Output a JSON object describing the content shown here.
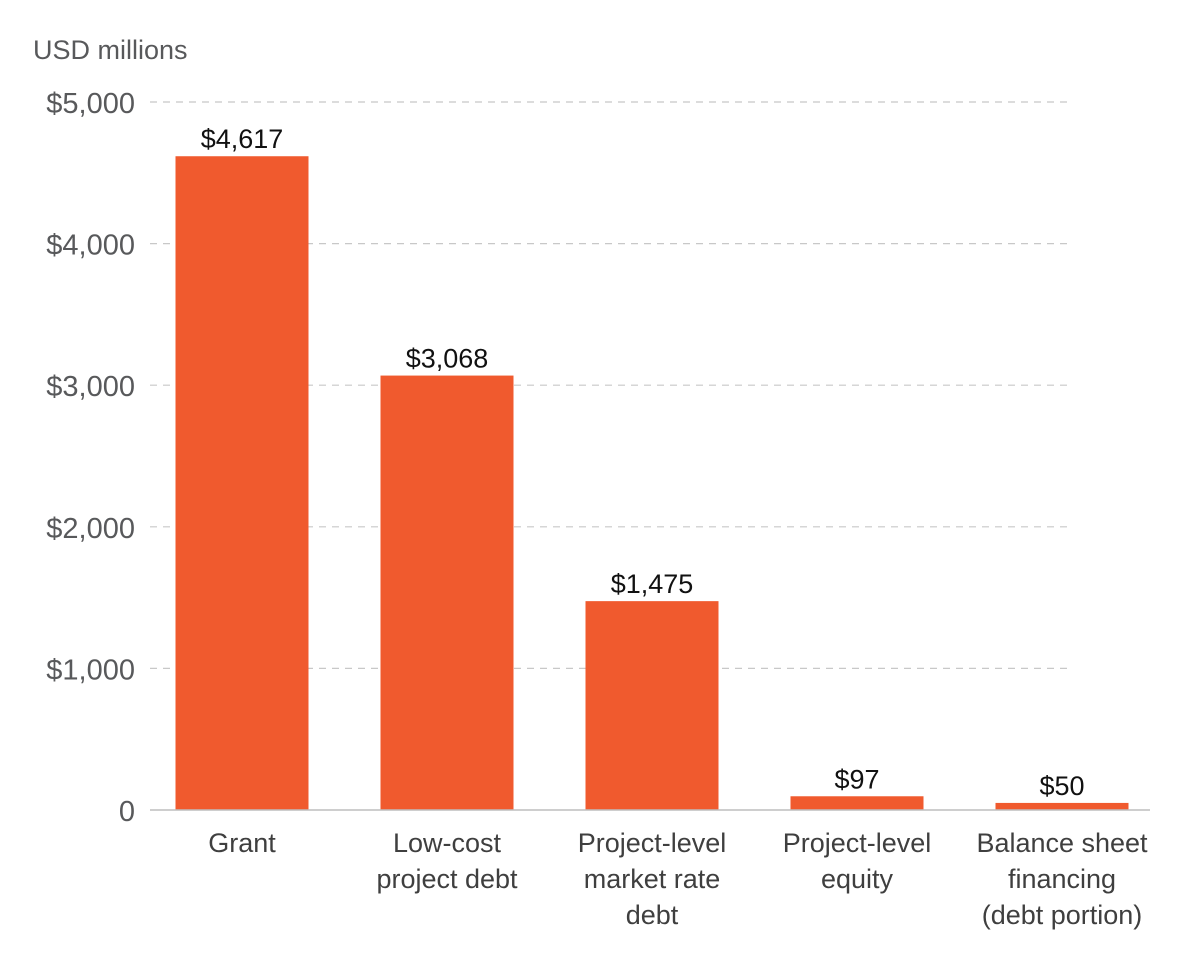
{
  "chart_data": {
    "type": "bar",
    "unit_label": "USD millions",
    "categories": [
      [
        "Grant"
      ],
      [
        "Low-cost",
        "project debt"
      ],
      [
        "Project-level",
        "market rate",
        "debt"
      ],
      [
        "Project-level",
        "equity"
      ],
      [
        "Balance sheet",
        "financing",
        "(debt portion)"
      ]
    ],
    "values": [
      4617,
      3068,
      1475,
      97,
      50
    ],
    "data_labels": [
      "$4,617",
      "$3,068",
      "$1,475",
      "$97",
      "$50"
    ],
    "yticks": [
      {
        "value": 0,
        "label": "0"
      },
      {
        "value": 1000,
        "label": "$1,000"
      },
      {
        "value": 2000,
        "label": "$2,000"
      },
      {
        "value": 3000,
        "label": "$3,000"
      },
      {
        "value": 4000,
        "label": "$4,000"
      },
      {
        "value": 5000,
        "label": "$5,000"
      }
    ],
    "ylim": [
      0,
      5000
    ],
    "grid": true,
    "bar_color": "#f05a2e"
  }
}
